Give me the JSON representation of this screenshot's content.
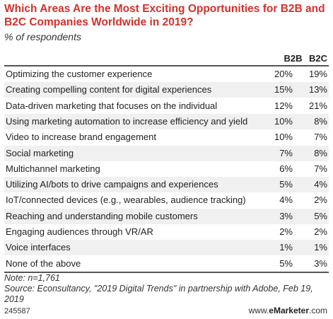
{
  "header": {
    "title": "Which Areas Are the Most Exciting Opportunities for B2B and B2C Companies Worldwide in 2019?",
    "subtitle": "% of respondents"
  },
  "columns": [
    "B2B",
    "B2C"
  ],
  "rows": [
    {
      "label": "Optimizing the customer experience",
      "b2b": "20%",
      "b2c": "19%"
    },
    {
      "label": "Creating compelling content for digital experiences",
      "b2b": "15%",
      "b2c": "13%"
    },
    {
      "label": "Data-driven marketing that focuses on the individual",
      "b2b": "12%",
      "b2c": "21%"
    },
    {
      "label": "Using marketing automation to increase efficiency and yield",
      "b2b": "10%",
      "b2c": "8%"
    },
    {
      "label": "Video to increase brand engagement",
      "b2b": "10%",
      "b2c": "7%"
    },
    {
      "label": "Social marketing",
      "b2b": "7%",
      "b2c": "8%"
    },
    {
      "label": "Multichannel marketing",
      "b2b": "6%",
      "b2c": "7%"
    },
    {
      "label": "Utilizing AI/bots to drive campaigns and experiences",
      "b2b": "5%",
      "b2c": "4%"
    },
    {
      "label": "IoT/connected devices (e.g., wearables, audience tracking)",
      "b2b": "4%",
      "b2c": "2%"
    },
    {
      "label": "Reaching and understanding mobile customers",
      "b2b": "3%",
      "b2c": "5%"
    },
    {
      "label": "Engaging audiences through VR/AR",
      "b2b": "2%",
      "b2c": "2%"
    },
    {
      "label": "Voice interfaces",
      "b2b": "1%",
      "b2c": "1%"
    },
    {
      "label": "None of the above",
      "b2b": "5%",
      "b2c": "3%"
    }
  ],
  "footer": {
    "note": "Note: n=1,761",
    "source": "Source: Econsultancy, \"2019 Digital Trends\" in partnership with Adobe, Feb 19, 2019",
    "code": "245587",
    "brand_prefix": "www.",
    "brand_name": "eMarketer",
    "brand_suffix": ".com"
  },
  "chart_data": {
    "type": "table",
    "title": "Which Areas Are the Most Exciting Opportunities for B2B and B2C Companies Worldwide in 2019?",
    "subtitle": "% of respondents",
    "categories": [
      "Optimizing the customer experience",
      "Creating compelling content for digital experiences",
      "Data-driven marketing that focuses on the individual",
      "Using marketing automation to increase efficiency and yield",
      "Video to increase brand engagement",
      "Social marketing",
      "Multichannel marketing",
      "Utilizing AI/bots to drive campaigns and experiences",
      "IoT/connected devices (e.g., wearables, audience tracking)",
      "Reaching and understanding mobile customers",
      "Engaging audiences through VR/AR",
      "Voice interfaces",
      "None of the above"
    ],
    "series": [
      {
        "name": "B2B",
        "values": [
          20,
          15,
          12,
          10,
          10,
          7,
          6,
          5,
          4,
          3,
          2,
          1,
          5
        ]
      },
      {
        "name": "B2C",
        "values": [
          19,
          13,
          21,
          8,
          7,
          8,
          7,
          4,
          2,
          5,
          2,
          1,
          3
        ]
      }
    ]
  }
}
